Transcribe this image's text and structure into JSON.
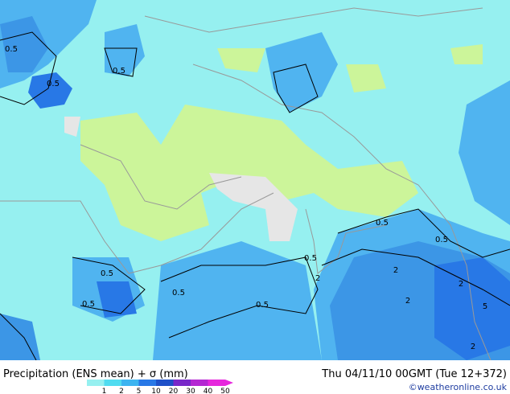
{
  "map": {
    "contour_labels": [
      "0.5",
      "0.5",
      "0.5",
      "0.5",
      "0.5",
      "0.5",
      "0.5",
      "0.5",
      "0.5",
      "0.5",
      "2",
      "2",
      "2",
      "2",
      "2",
      "5"
    ]
  },
  "footer": {
    "title": "Precipitation (ENS mean) + σ (mm)",
    "date": "Thu 04/11/10 00GMT (Tue 12+372)",
    "credit": "©weatheronline.co.uk",
    "legend": {
      "levels": [
        "1",
        "2",
        "5",
        "10",
        "20",
        "30",
        "40",
        "50"
      ],
      "colors": [
        "#96f0f0",
        "#50dcf0",
        "#3cb4f0",
        "#2878e6",
        "#1e50c8",
        "#7828c8",
        "#b428d2",
        "#e628dc"
      ]
    }
  }
}
